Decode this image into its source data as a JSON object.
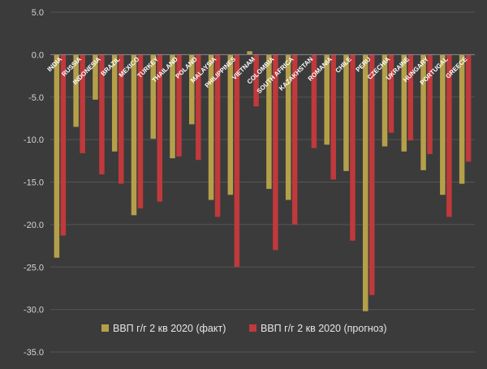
{
  "chart_data": {
    "type": "bar",
    "categories": [
      "INDIA",
      "RUSSIA",
      "INDONESIA",
      "BRAZIL",
      "MEXICO",
      "TURKEY",
      "THAILAND",
      "POLAND",
      "MALAYSIA",
      "PHILIPPINES",
      "VIETNAM",
      "COLOMBIA",
      "SOUTH AFRICA",
      "KAZAKHSTAN",
      "ROMANIA",
      "CHILE",
      "PERU",
      "CZECHIA",
      "UKRAINE",
      "HUNGARY",
      "PORTUGAL",
      "GREECE"
    ],
    "series": [
      {
        "name": "ВВП г/г 2 кв 2020 (факт)",
        "color": "#b5a04a",
        "values": [
          -23.9,
          -8.5,
          -5.3,
          -11.4,
          -18.9,
          -9.9,
          -12.2,
          -8.2,
          -17.1,
          -16.5,
          0.4,
          -15.8,
          -17.1,
          null,
          -10.6,
          -13.7,
          -30.2,
          -10.8,
          -11.4,
          -13.6,
          -16.5,
          -15.2
        ]
      },
      {
        "name": "ВВП г/г 2 кв 2020 (прогноз)",
        "color": "#c0393b",
        "values": [
          -21.3,
          -11.6,
          -14.1,
          -15.2,
          -18.1,
          -17.3,
          -12.0,
          -12.4,
          -19.1,
          -25.0,
          -6.1,
          -23.0,
          -20.0,
          -11.0,
          -14.7,
          -21.9,
          -28.3,
          -9.2,
          -10.1,
          -11.7,
          -19.1,
          -12.6
        ]
      }
    ],
    "ylim": [
      -35,
      5
    ],
    "yticks": [
      "5.0",
      "0.0",
      "-5.0",
      "-10.0",
      "-15.0",
      "-20.0",
      "-25.0",
      "-30.0",
      "-35.0"
    ],
    "ytick_values": [
      5,
      0,
      -5,
      -10,
      -15,
      -20,
      -25,
      -30,
      -35
    ],
    "grid": true,
    "legend_position": "bottom-center"
  }
}
